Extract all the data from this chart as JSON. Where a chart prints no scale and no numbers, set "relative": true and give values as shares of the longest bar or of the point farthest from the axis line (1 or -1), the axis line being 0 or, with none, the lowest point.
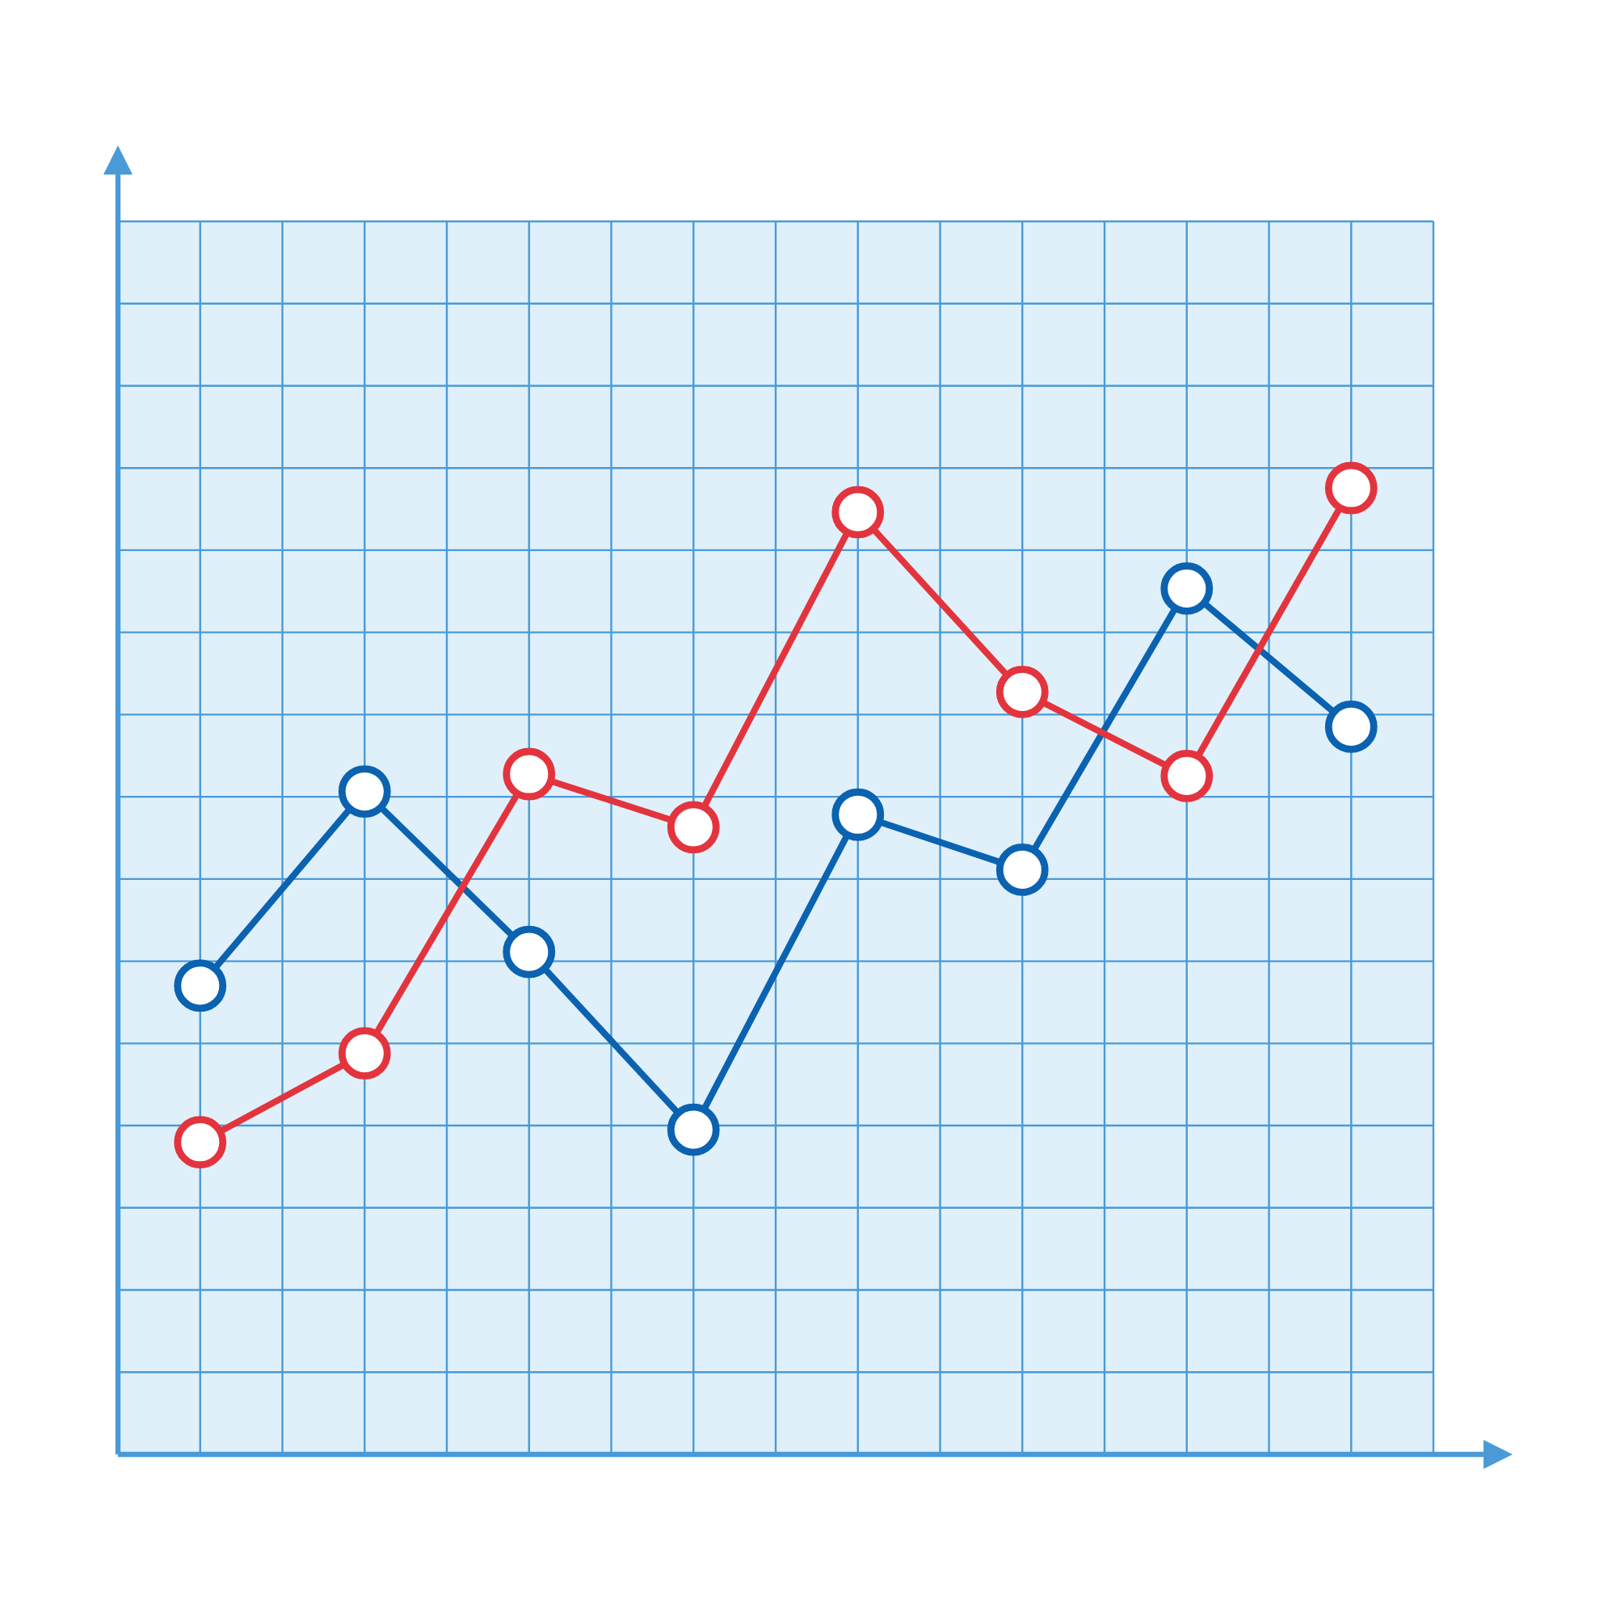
{
  "chart_data": {
    "type": "line",
    "relative": true,
    "grid": true,
    "marker": "circle",
    "line_style": "solid",
    "categories": [
      null,
      null,
      null,
      null,
      null,
      null,
      null,
      null
    ],
    "series": [
      {
        "color": "#0b62b0",
        "values": [
          0.485,
          0.686,
          0.52,
          0.336,
          0.662,
          0.605,
          0.896,
          0.753
        ]
      },
      {
        "color": "#e3343e",
        "values": [
          0.323,
          0.415,
          0.704,
          0.649,
          0.975,
          0.789,
          0.702,
          1.0
        ]
      }
    ]
  }
}
